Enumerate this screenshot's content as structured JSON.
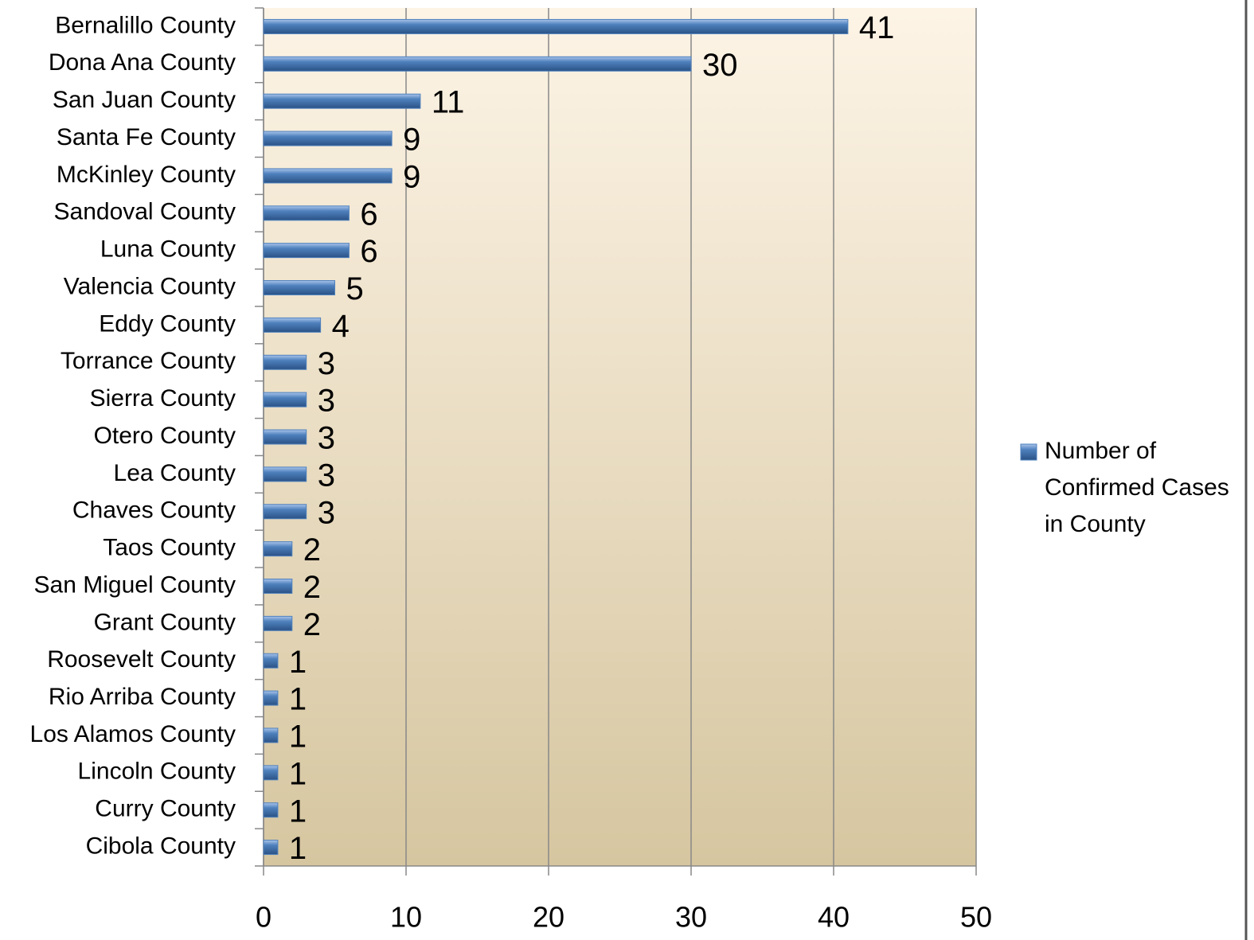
{
  "chart_data": {
    "type": "bar",
    "orientation": "horizontal",
    "categories": [
      "Bernalillo County",
      "Dona Ana County",
      "San Juan County",
      "Santa Fe County",
      "McKinley County",
      "Sandoval County",
      "Luna County",
      "Valencia County",
      "Eddy County",
      "Torrance County",
      "Sierra County",
      "Otero County",
      "Lea County",
      "Chaves County",
      "Taos County",
      "San Miguel County",
      "Grant County",
      "Roosevelt County",
      "Rio Arriba County",
      "Los Alamos County",
      "Lincoln County",
      "Curry County",
      "Cibola County"
    ],
    "series": [
      {
        "name": "Number of Confirmed Cases in County",
        "color": "#4f81bd",
        "values": [
          41,
          30,
          11,
          9,
          9,
          6,
          6,
          5,
          4,
          3,
          3,
          3,
          3,
          3,
          2,
          2,
          2,
          1,
          1,
          1,
          1,
          1,
          1
        ]
      }
    ],
    "xlim": [
      0,
      50
    ],
    "xticks": [
      0,
      10,
      20,
      30,
      40,
      50
    ],
    "grid": true,
    "legend": "right"
  }
}
